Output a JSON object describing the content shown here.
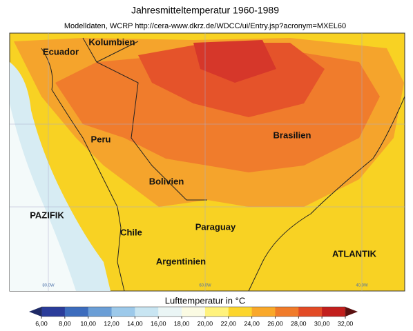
{
  "header": {
    "title": "Jahresmitteltemperatur 1960-1989",
    "subtitle": "Modelldaten, WCRP http://cera-www.dkrz.de/WDCC/ui/Entry.jsp?acronym=MXEL60"
  },
  "map": {
    "labels": [
      "Ecuador",
      "Kolumbien",
      "Peru",
      "Brasilien",
      "Bolivien",
      "PAZIFIK",
      "Chile",
      "Paraguay",
      "Argentinien",
      "ATLANTIK"
    ],
    "grid_labels": [
      "80.0W",
      "60.0W",
      "40.0W"
    ]
  },
  "colorbar": {
    "title": "Lufttemperatur in °C",
    "range": [
      6,
      32
    ],
    "ticks": [
      {
        "value": 6,
        "label": "6,00"
      },
      {
        "value": 8,
        "label": "8,00"
      },
      {
        "value": 10,
        "label": "10,00"
      },
      {
        "value": 12,
        "label": "12,00"
      },
      {
        "value": 14,
        "label": "14,00"
      },
      {
        "value": 16,
        "label": "16,00"
      },
      {
        "value": 18,
        "label": "18,00"
      },
      {
        "value": 20,
        "label": "20,00"
      },
      {
        "value": 22,
        "label": "22,00"
      },
      {
        "value": 24,
        "label": "24,00"
      },
      {
        "value": 26,
        "label": "26,00"
      },
      {
        "value": 28,
        "label": "28,00"
      },
      {
        "value": 30,
        "label": "30,00"
      },
      {
        "value": 32,
        "label": "32,00"
      }
    ],
    "colors": [
      "#2a3c9a",
      "#3c6cbd",
      "#6a9ed6",
      "#9cc9ea",
      "#c8e5f2",
      "#eaf5f5",
      "#fbfbe3",
      "#fff27c",
      "#fcd52c",
      "#f9a82a",
      "#f07b2a",
      "#e24a25",
      "#c21f1d"
    ]
  }
}
